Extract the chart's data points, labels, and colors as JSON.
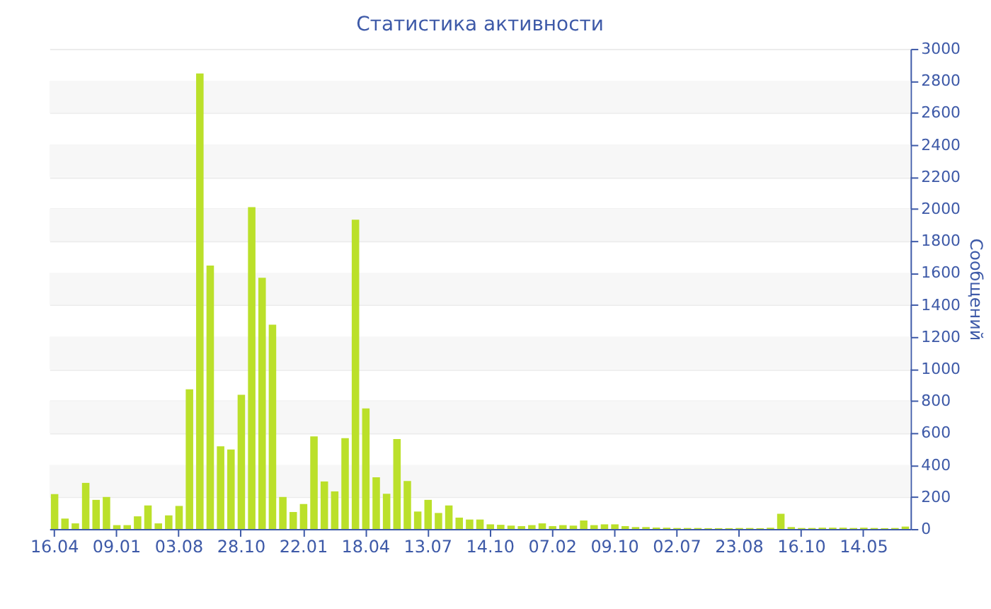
{
  "chart_data": {
    "type": "bar",
    "title": "Статистика активности",
    "ylabel": "Сообщений",
    "categories": [
      "16.04",
      null,
      null,
      null,
      null,
      null,
      "09.01",
      null,
      null,
      null,
      null,
      null,
      "03.08",
      null,
      null,
      null,
      null,
      null,
      "28.10",
      null,
      null,
      null,
      null,
      null,
      "22.01",
      null,
      null,
      null,
      null,
      null,
      "18.04",
      null,
      null,
      null,
      null,
      null,
      "13.07",
      null,
      null,
      null,
      null,
      null,
      "14.10",
      null,
      null,
      null,
      null,
      null,
      "07.02",
      null,
      null,
      null,
      null,
      null,
      "09.10",
      null,
      null,
      null,
      null,
      null,
      "02.07",
      null,
      null,
      null,
      null,
      null,
      "23.08",
      null,
      null,
      null,
      null,
      null,
      "16.10",
      null,
      null,
      null,
      null,
      null,
      "14.05",
      null,
      null,
      null,
      null
    ],
    "values": [
      218,
      65,
      35,
      288,
      182,
      200,
      24,
      24,
      79,
      147,
      35,
      85,
      144,
      873,
      2846,
      1646,
      517,
      497,
      838,
      2011,
      1570,
      1276,
      200,
      106,
      156,
      579,
      297,
      235,
      567,
      1932,
      753,
      323,
      220,
      562,
      300,
      109,
      182,
      100,
      147,
      71,
      59,
      59,
      29,
      26,
      21,
      18,
      24,
      35,
      18,
      24,
      21,
      53,
      24,
      29,
      29,
      18,
      12,
      12,
      9,
      8,
      6,
      6,
      6,
      5,
      5,
      5,
      6,
      6,
      5,
      8,
      95,
      12,
      6,
      6,
      8,
      8,
      8,
      6,
      8,
      6,
      5,
      6,
      15
    ],
    "color": "#bbe02a",
    "ylim": [
      0,
      3000
    ],
    "yticks": [
      0,
      200,
      400,
      600,
      800,
      1000,
      1200,
      1400,
      1600,
      1800,
      2000,
      2200,
      2400,
      2600,
      2800,
      3000
    ],
    "grid": "y"
  }
}
